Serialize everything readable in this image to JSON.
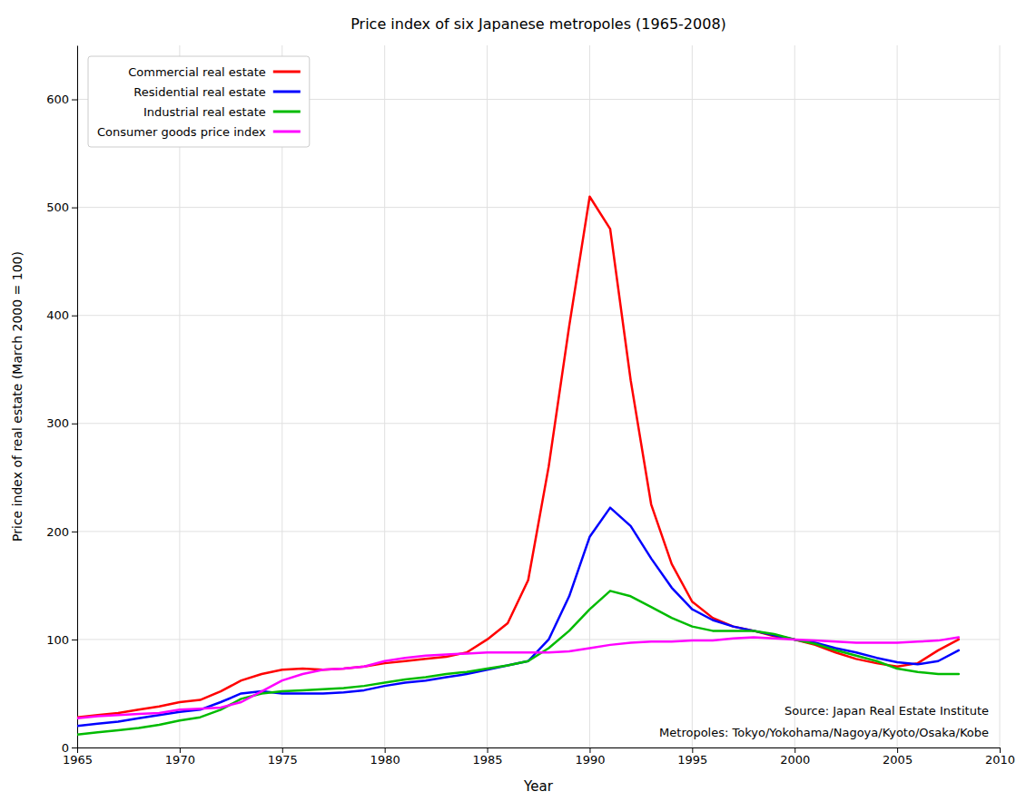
{
  "chart_data": {
    "type": "line",
    "title": "Price index of six Japanese metropoles (1965-2008)",
    "xlabel": "Year",
    "ylabel": "Price index of real estate (March 2000 = 100)",
    "x": [
      1965,
      1966,
      1967,
      1968,
      1969,
      1970,
      1971,
      1972,
      1973,
      1974,
      1975,
      1976,
      1977,
      1978,
      1979,
      1980,
      1981,
      1982,
      1983,
      1984,
      1985,
      1986,
      1987,
      1988,
      1989,
      1990,
      1991,
      1992,
      1993,
      1994,
      1995,
      1996,
      1997,
      1998,
      1999,
      2000,
      2001,
      2002,
      2003,
      2004,
      2005,
      2006,
      2007,
      2008
    ],
    "series": [
      {
        "name": "Commercial real estate",
        "color": "#ff0000",
        "values": [
          28,
          30,
          32,
          35,
          38,
          42,
          44,
          52,
          62,
          68,
          72,
          73,
          72,
          73,
          75,
          78,
          80,
          82,
          84,
          88,
          100,
          115,
          155,
          260,
          390,
          510,
          480,
          340,
          225,
          170,
          135,
          120,
          112,
          108,
          103,
          100,
          95,
          88,
          82,
          78,
          75,
          78,
          90,
          100
        ]
      },
      {
        "name": "Residential real estate",
        "color": "#0000ff",
        "values": [
          20,
          22,
          24,
          27,
          30,
          33,
          35,
          42,
          50,
          52,
          50,
          50,
          50,
          51,
          53,
          57,
          60,
          62,
          65,
          68,
          72,
          76,
          80,
          100,
          140,
          195,
          222,
          205,
          175,
          148,
          128,
          118,
          112,
          108,
          104,
          100,
          97,
          92,
          88,
          83,
          79,
          77,
          80,
          90
        ]
      },
      {
        "name": "Industrial real estate",
        "color": "#00bb00",
        "values": [
          12,
          14,
          16,
          18,
          21,
          25,
          28,
          35,
          45,
          50,
          52,
          53,
          54,
          55,
          57,
          60,
          63,
          65,
          68,
          70,
          73,
          76,
          80,
          92,
          108,
          128,
          145,
          140,
          130,
          120,
          112,
          108,
          108,
          108,
          105,
          100,
          96,
          90,
          85,
          80,
          73,
          70,
          68,
          68
        ]
      },
      {
        "name": "Consumer goods price index",
        "color": "#ff00ff",
        "values": [
          27,
          29,
          30,
          31,
          32,
          35,
          36,
          37,
          42,
          52,
          62,
          68,
          72,
          73,
          75,
          80,
          83,
          85,
          86,
          87,
          88,
          88,
          88,
          88,
          89,
          92,
          95,
          97,
          98,
          98,
          99,
          99,
          101,
          102,
          101,
          100,
          99,
          98,
          97,
          97,
          97,
          98,
          99,
          102
        ]
      }
    ],
    "xlim": [
      1965,
      2010
    ],
    "ylim": [
      0,
      650
    ],
    "xticks": [
      1965,
      1970,
      1975,
      1980,
      1985,
      1990,
      1995,
      2000,
      2005,
      2010
    ],
    "yticks": [
      0,
      100,
      200,
      300,
      400,
      500,
      600
    ],
    "grid": true,
    "legend": "upper left",
    "annotations": [
      "Source: Japan Real Estate Institute",
      "Metropoles: Tokyo/Yokohama/Nagoya/Kyoto/Osaka/Kobe"
    ]
  }
}
